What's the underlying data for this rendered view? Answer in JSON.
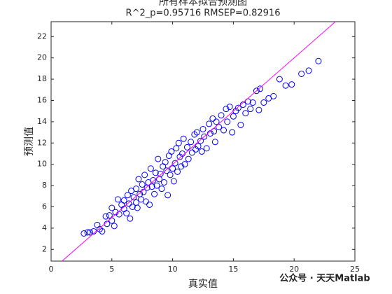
{
  "chart_data": {
    "type": "scatter",
    "title": "所有样本拟合预测图",
    "subtitle": "R^2_p=0.95716  RMSEP=0.82916",
    "x_label": "真实值",
    "y_label": "预测值",
    "watermark": "公众号 · 天天Matlab",
    "xlim": [
      0,
      25
    ],
    "ylim": [
      0.9,
      23.4
    ],
    "xticks": [
      0,
      5,
      10,
      15,
      20,
      25
    ],
    "yticks": [
      2,
      4,
      6,
      8,
      10,
      12,
      14,
      16,
      18,
      20,
      22
    ],
    "grid": false,
    "series": [
      {
        "color": "#0000ff",
        "x": [
          2.7,
          3.0,
          3.2,
          3.5,
          3.8,
          4.0,
          4.2,
          4.5,
          4.6,
          4.8,
          5.0,
          5.0,
          5.2,
          5.3,
          5.5,
          5.6,
          5.8,
          6.0,
          6.0,
          6.2,
          6.3,
          6.4,
          6.5,
          6.6,
          6.7,
          6.8,
          7.0,
          7.0,
          7.1,
          7.2,
          7.3,
          7.4,
          7.5,
          7.6,
          7.7,
          7.8,
          7.9,
          8.0,
          8.1,
          8.2,
          8.3,
          8.4,
          8.5,
          8.6,
          8.7,
          8.8,
          8.9,
          9.0,
          9.1,
          9.2,
          9.3,
          9.4,
          9.5,
          9.6,
          9.7,
          9.8,
          9.9,
          10.0,
          10.1,
          10.2,
          10.3,
          10.4,
          10.5,
          10.6,
          10.7,
          10.8,
          10.9,
          11.0,
          11.2,
          11.3,
          11.5,
          11.6,
          11.8,
          11.9,
          12.0,
          12.1,
          12.3,
          12.4,
          12.5,
          12.6,
          12.8,
          13.0,
          13.1,
          13.3,
          13.4,
          13.5,
          13.6,
          13.8,
          14.0,
          14.2,
          14.4,
          14.5,
          14.7,
          14.9,
          15.0,
          15.2,
          15.4,
          15.6,
          15.8,
          16.0,
          16.2,
          16.4,
          16.6,
          16.9,
          17.1,
          17.2,
          17.5,
          17.9,
          18.3,
          18.8,
          19.3,
          19.8,
          20.6,
          21.2,
          22.0
        ],
        "values": [
          3.5,
          3.6,
          3.6,
          3.7,
          4.3,
          3.9,
          3.7,
          5.1,
          4.4,
          5.2,
          4.7,
          5.9,
          4.2,
          5.5,
          6.7,
          5.3,
          6.2,
          5.8,
          6.6,
          5.4,
          7.1,
          6.3,
          4.9,
          7.5,
          6.0,
          6.9,
          7.7,
          6.4,
          5.9,
          8.6,
          7.2,
          6.7,
          8.1,
          7.4,
          9.0,
          6.5,
          7.8,
          8.3,
          6.2,
          9.6,
          7.9,
          8.5,
          7.2,
          9.2,
          8.0,
          10.5,
          8.6,
          9.1,
          7.7,
          9.8,
          8.3,
          10.2,
          9.4,
          7.1,
          10.8,
          9.0,
          11.2,
          9.6,
          8.4,
          10.1,
          11.5,
          9.3,
          12.0,
          10.7,
          9.8,
          11.0,
          12.4,
          10.0,
          11.6,
          10.5,
          12.1,
          11.1,
          12.8,
          11.4,
          13.0,
          11.7,
          12.2,
          11.2,
          13.3,
          12.6,
          11.5,
          13.8,
          12.9,
          14.3,
          13.1,
          12.1,
          14.0,
          13.5,
          14.6,
          13.2,
          15.2,
          14.0,
          15.4,
          13.0,
          14.5,
          15.0,
          15.3,
          13.7,
          15.6,
          14.8,
          15.9,
          15.2,
          15.8,
          16.9,
          15.1,
          17.1,
          15.8,
          16.2,
          16.4,
          18.0,
          17.4,
          17.5,
          18.5,
          18.8,
          19.7
        ]
      },
      {
        "type": "line",
        "color": "#ff00ff",
        "x": [
          0,
          25
        ],
        "values": [
          0,
          25
        ]
      }
    ]
  }
}
